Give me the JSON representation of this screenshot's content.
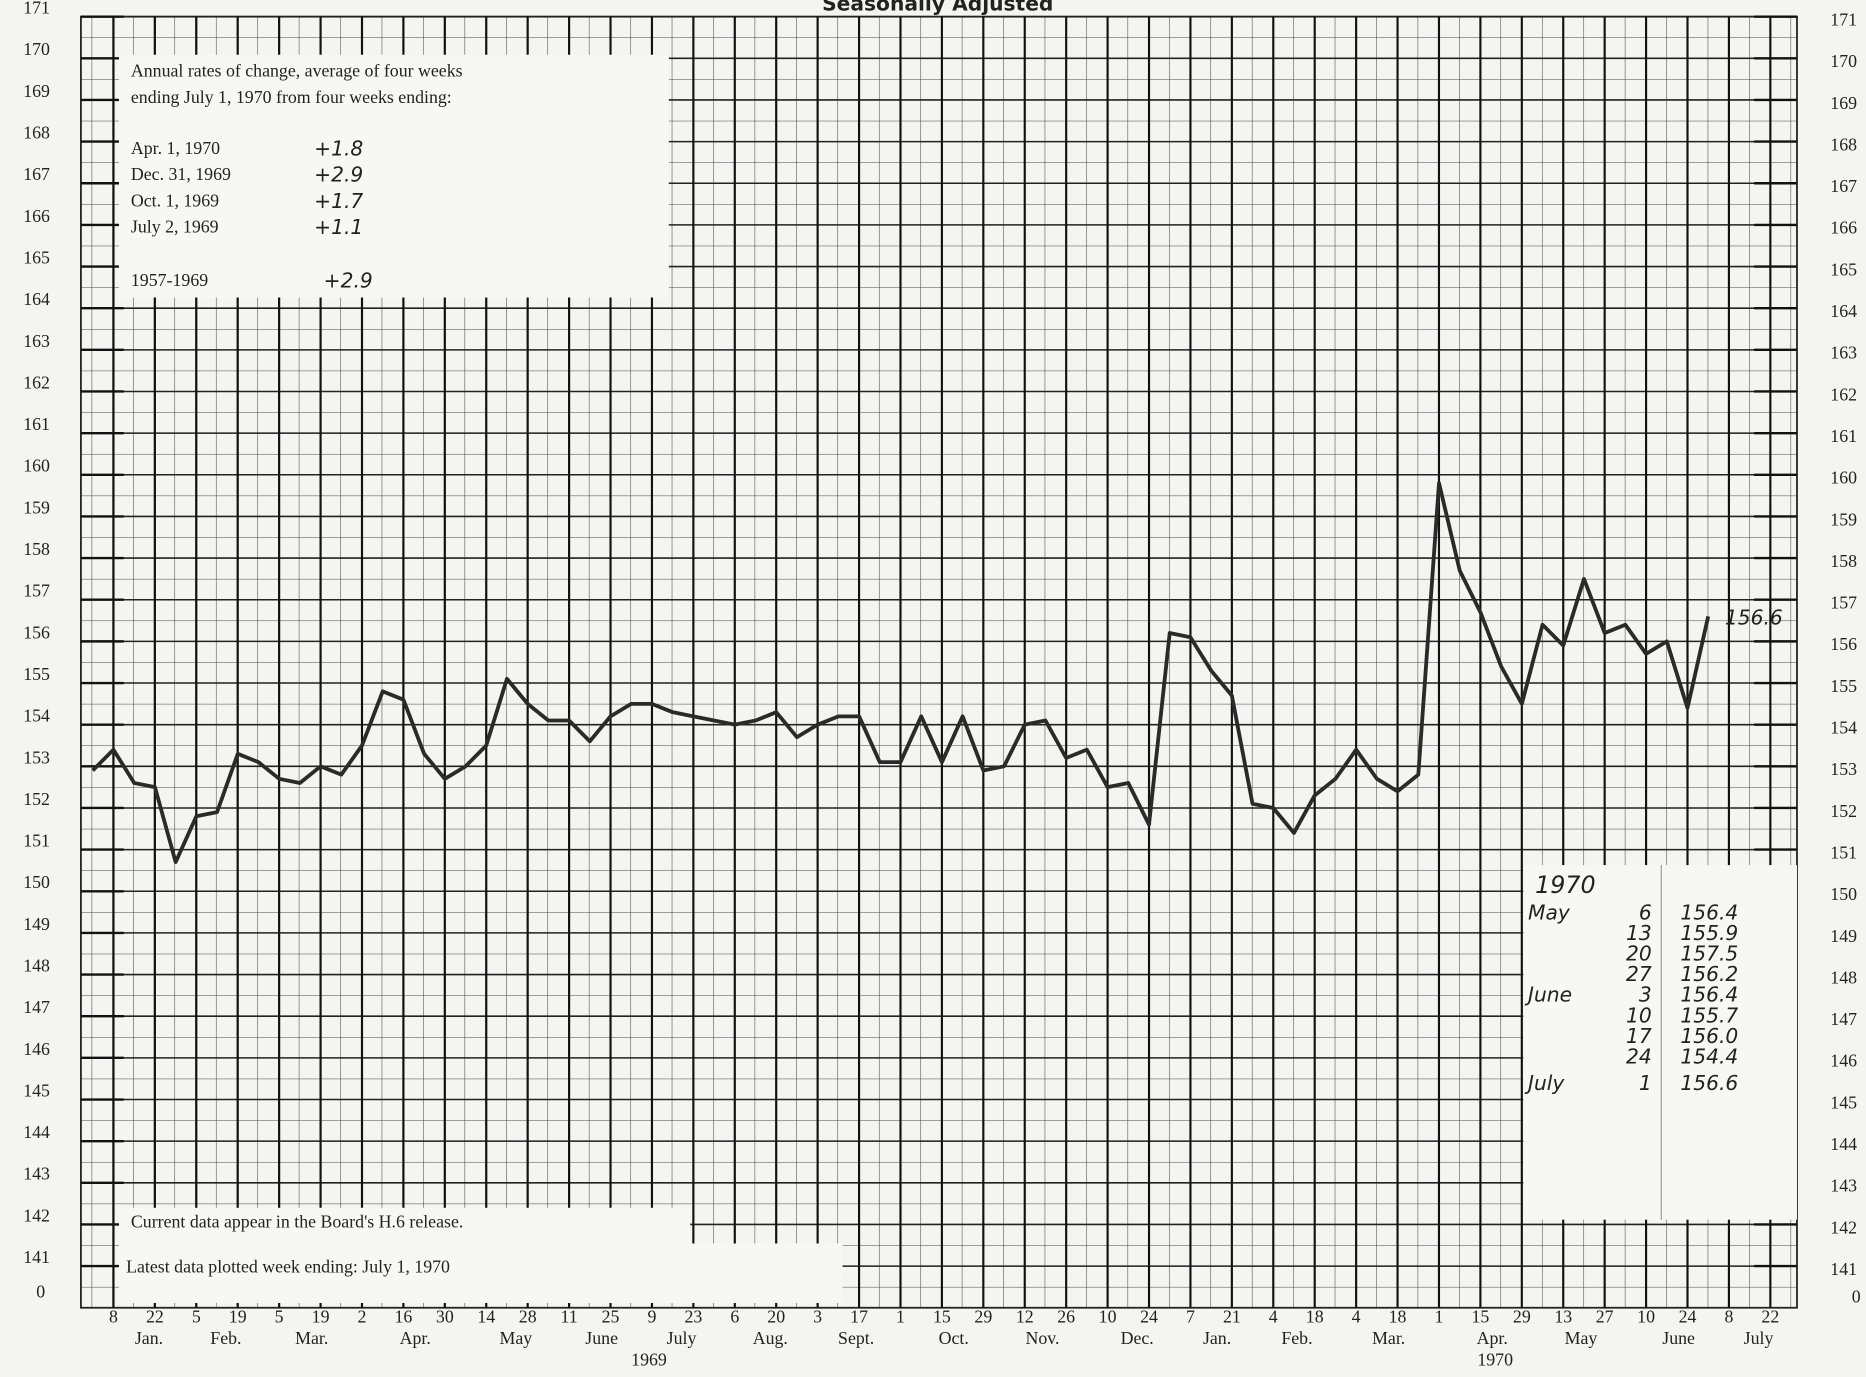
{
  "chart_data": {
    "type": "line",
    "title": "Seasonally Adjusted",
    "color": "#2a2a2a",
    "grid": true,
    "x": [
      "1969-01-01",
      "1969-01-08",
      "1969-01-15",
      "1969-01-22",
      "1969-01-29",
      "1969-02-05",
      "1969-02-12",
      "1969-02-19",
      "1969-02-26",
      "1969-03-05",
      "1969-03-12",
      "1969-03-19",
      "1969-03-26",
      "1969-04-02",
      "1969-04-09",
      "1969-04-16",
      "1969-04-23",
      "1969-04-30",
      "1969-05-07",
      "1969-05-14",
      "1969-05-21",
      "1969-05-28",
      "1969-06-04",
      "1969-06-11",
      "1969-06-18",
      "1969-06-25",
      "1969-07-02",
      "1969-07-09",
      "1969-07-16",
      "1969-07-23",
      "1969-07-30",
      "1969-08-06",
      "1969-08-13",
      "1969-08-20",
      "1969-08-27",
      "1969-09-03",
      "1969-09-10",
      "1969-09-17",
      "1969-09-24",
      "1969-10-01",
      "1969-10-08",
      "1969-10-15",
      "1969-10-22",
      "1969-10-29",
      "1969-11-05",
      "1969-11-12",
      "1969-11-19",
      "1969-11-26",
      "1969-12-03",
      "1969-12-10",
      "1969-12-17",
      "1969-12-24",
      "1969-12-31",
      "1970-01-07",
      "1970-01-14",
      "1970-01-21",
      "1970-01-28",
      "1970-02-04",
      "1970-02-11",
      "1970-02-18",
      "1970-02-25",
      "1970-03-04",
      "1970-03-11",
      "1970-03-18",
      "1970-03-25",
      "1970-04-01",
      "1970-04-08",
      "1970-04-15",
      "1970-04-22",
      "1970-04-29",
      "1970-05-06",
      "1970-05-13",
      "1970-05-20",
      "1970-05-27",
      "1970-06-03",
      "1970-06-10",
      "1970-06-17",
      "1970-06-24",
      "1970-07-01"
    ],
    "values": [
      152.9,
      153.4,
      152.6,
      152.5,
      150.7,
      151.8,
      151.9,
      153.3,
      153.1,
      152.7,
      152.6,
      153.0,
      152.8,
      153.5,
      154.8,
      154.6,
      153.3,
      152.7,
      153.0,
      153.5,
      155.1,
      154.5,
      154.1,
      154.1,
      153.6,
      154.2,
      154.5,
      154.5,
      154.3,
      154.2,
      154.1,
      154.0,
      154.1,
      154.3,
      153.7,
      154.0,
      154.2,
      154.2,
      153.1,
      153.1,
      154.2,
      153.1,
      154.2,
      152.9,
      153.0,
      154.0,
      154.1,
      153.2,
      153.4,
      152.5,
      152.6,
      151.6,
      156.2,
      156.1,
      155.3,
      154.7,
      152.1,
      152.0,
      151.4,
      152.3,
      152.7,
      153.4,
      152.7,
      152.4,
      152.8,
      159.8,
      157.7,
      156.7,
      155.4,
      154.5,
      156.4,
      155.9,
      157.5,
      156.2,
      156.4,
      155.7,
      156.0,
      154.4,
      156.6
    ],
    "xlim": [
      "1968-12-28",
      "1970-07-31"
    ],
    "xticks": [
      {
        "value": "1969-01-08",
        "label": "8"
      },
      {
        "value": "1969-01-22",
        "label": "22"
      },
      {
        "value": "1969-02-05",
        "label": "5"
      },
      {
        "value": "1969-02-19",
        "label": "19"
      },
      {
        "value": "1969-03-05",
        "label": "5"
      },
      {
        "value": "1969-03-19",
        "label": "19"
      },
      {
        "value": "1969-04-02",
        "label": "2"
      },
      {
        "value": "1969-04-16",
        "label": "16"
      },
      {
        "value": "1969-04-30",
        "label": "30"
      },
      {
        "value": "1969-05-14",
        "label": "14"
      },
      {
        "value": "1969-05-28",
        "label": "28"
      },
      {
        "value": "1969-06-11",
        "label": "11"
      },
      {
        "value": "1969-06-25",
        "label": "25"
      },
      {
        "value": "1969-07-09",
        "label": "9"
      },
      {
        "value": "1969-07-23",
        "label": "23"
      },
      {
        "value": "1969-08-06",
        "label": "6"
      },
      {
        "value": "1969-08-20",
        "label": "20"
      },
      {
        "value": "1969-09-03",
        "label": "3"
      },
      {
        "value": "1969-09-17",
        "label": "17"
      },
      {
        "value": "1969-10-01",
        "label": "1"
      },
      {
        "value": "1969-10-15",
        "label": "15"
      },
      {
        "value": "1969-10-29",
        "label": "29"
      },
      {
        "value": "1969-11-12",
        "label": "12"
      },
      {
        "value": "1969-11-26",
        "label": "26"
      },
      {
        "value": "1969-12-10",
        "label": "10"
      },
      {
        "value": "1969-12-24",
        "label": "24"
      },
      {
        "value": "1970-01-07",
        "label": "7"
      },
      {
        "value": "1970-01-21",
        "label": "21"
      },
      {
        "value": "1970-02-04",
        "label": "4"
      },
      {
        "value": "1970-02-18",
        "label": "18"
      },
      {
        "value": "1970-03-04",
        "label": "4"
      },
      {
        "value": "1970-03-18",
        "label": "18"
      },
      {
        "value": "1970-04-01",
        "label": "1"
      },
      {
        "value": "1970-04-15",
        "label": "15"
      },
      {
        "value": "1970-04-29",
        "label": "29"
      },
      {
        "value": "1970-05-13",
        "label": "13"
      },
      {
        "value": "1970-05-27",
        "label": "27"
      },
      {
        "value": "1970-06-10",
        "label": "10"
      },
      {
        "value": "1970-06-24",
        "label": "24"
      },
      {
        "value": "1970-07-08",
        "label": "8"
      },
      {
        "value": "1970-07-22",
        "label": "22"
      }
    ],
    "month_labels": [
      {
        "value": "1969-01-20",
        "label": "Jan."
      },
      {
        "value": "1969-02-15",
        "label": "Feb."
      },
      {
        "value": "1969-03-16",
        "label": "Mar."
      },
      {
        "value": "1969-04-20",
        "label": "Apr."
      },
      {
        "value": "1969-05-24",
        "label": "May"
      },
      {
        "value": "1969-06-22",
        "label": "June"
      },
      {
        "value": "1969-07-19",
        "label": "July"
      },
      {
        "value": "1969-08-18",
        "label": "Aug."
      },
      {
        "value": "1969-09-16",
        "label": "Sept."
      },
      {
        "value": "1969-10-19",
        "label": "Oct."
      },
      {
        "value": "1969-11-18",
        "label": "Nov."
      },
      {
        "value": "1969-12-20",
        "label": "Dec."
      },
      {
        "value": "1970-01-16",
        "label": "Jan."
      },
      {
        "value": "1970-02-12",
        "label": "Feb."
      },
      {
        "value": "1970-03-15",
        "label": "Mar."
      },
      {
        "value": "1970-04-19",
        "label": "Apr."
      },
      {
        "value": "1970-05-19",
        "label": "May"
      },
      {
        "value": "1970-06-21",
        "label": "June"
      },
      {
        "value": "1970-07-18",
        "label": "July"
      }
    ],
    "year_labels": [
      {
        "value": "1969-07-08",
        "label": "1969"
      },
      {
        "value": "1970-04-20",
        "label": "1970"
      }
    ],
    "ylim": [
      140,
      171
    ],
    "yticks": [
      141,
      142,
      143,
      144,
      145,
      146,
      147,
      148,
      149,
      150,
      151,
      152,
      153,
      154,
      155,
      156,
      157,
      158,
      159,
      160,
      161,
      162,
      163,
      164,
      165,
      166,
      167,
      168,
      169,
      170,
      171
    ],
    "y_break_label": 0,
    "rates_box": {
      "heading": [
        "Annual rates of change, average of four weeks",
        "ending July 1, 1970 from four weeks ending:"
      ],
      "rows": [
        [
          "Apr. 1, 1970",
          "+1.8"
        ],
        [
          "Dec. 31, 1969",
          "+2.9"
        ],
        [
          "Oct. 1, 1969",
          "+1.7"
        ],
        [
          "July 2, 1969",
          "+1.1"
        ],
        [
          "1957-1969",
          "+2.9"
        ]
      ]
    },
    "notes": [
      "Current data appear in the Board's H.6 release.",
      "Latest data plotted week ending: July 1, 1970"
    ],
    "table": {
      "year": "1970",
      "months": [
        {
          "name": "May",
          "rows": [
            [
              "6",
              "156.4"
            ],
            [
              "13",
              "155.9"
            ],
            [
              "20",
              "157.5"
            ],
            [
              "27",
              "156.2"
            ]
          ]
        },
        {
          "name": "June",
          "rows": [
            [
              "3",
              "156.4"
            ],
            [
              "10",
              "155.7"
            ],
            [
              "17",
              "156.0"
            ],
            [
              "24",
              "154.4"
            ]
          ]
        },
        {
          "name": "July",
          "rows": [
            [
              "1",
              "156.6"
            ]
          ]
        }
      ]
    }
  }
}
